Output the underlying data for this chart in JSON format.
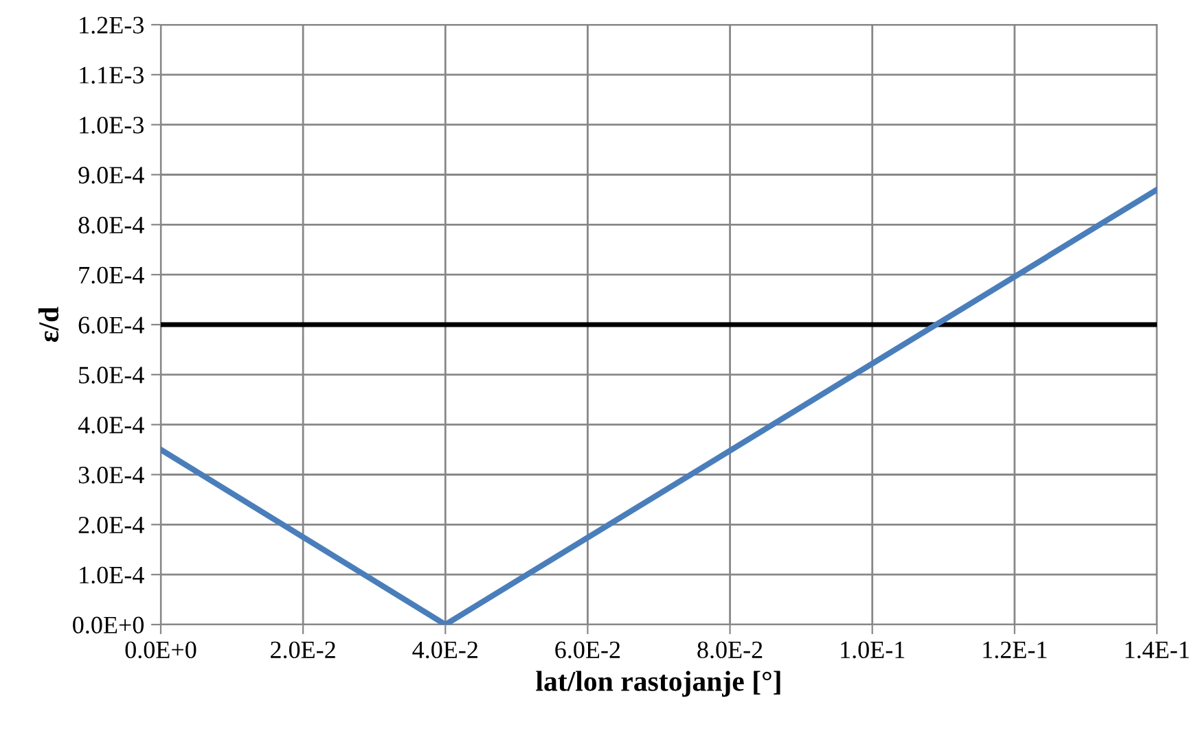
{
  "chart_data": {
    "type": "line",
    "xlabel": "lat/lon rastojanje [°]",
    "ylabel": "ε/d",
    "x": [
      0,
      0.04,
      0.14
    ],
    "series": [
      {
        "color": "#4a7ebb",
        "values": [
          0.00035,
          0,
          0.00087
        ]
      }
    ],
    "ref_lines": [
      {
        "axis": "y",
        "value": 0.0006,
        "color": "#000000",
        "line_style": "solid"
      }
    ],
    "xlim": [
      0,
      0.14
    ],
    "ylim": [
      0,
      0.0012
    ],
    "xticks": [
      {
        "value": 0,
        "label": "0.0E+0"
      },
      {
        "value": 0.02,
        "label": "2.0E-2"
      },
      {
        "value": 0.04,
        "label": "4.0E-2"
      },
      {
        "value": 0.06,
        "label": "6.0E-2"
      },
      {
        "value": 0.08,
        "label": "8.0E-2"
      },
      {
        "value": 0.1,
        "label": "1.0E-1"
      },
      {
        "value": 0.12,
        "label": "1.2E-1"
      },
      {
        "value": 0.14,
        "label": "1.4E-1"
      }
    ],
    "yticks": [
      {
        "value": 0,
        "label": "0.0E+0"
      },
      {
        "value": 0.0001,
        "label": "1.0E-4"
      },
      {
        "value": 0.0002,
        "label": "2.0E-4"
      },
      {
        "value": 0.0003,
        "label": "3.0E-4"
      },
      {
        "value": 0.0004,
        "label": "4.0E-4"
      },
      {
        "value": 0.0005,
        "label": "5.0E-4"
      },
      {
        "value": 0.0006,
        "label": "6.0E-4"
      },
      {
        "value": 0.0007,
        "label": "7.0E-4"
      },
      {
        "value": 0.0008,
        "label": "8.0E-4"
      },
      {
        "value": 0.0009,
        "label": "9.0E-4"
      },
      {
        "value": 0.001,
        "label": "1.0E-3"
      },
      {
        "value": 0.0011,
        "label": "1.1E-3"
      },
      {
        "value": 0.0012,
        "label": "1.2E-3"
      }
    ],
    "grid": true,
    "marker": "none",
    "line_style": "solid",
    "legend": false
  }
}
